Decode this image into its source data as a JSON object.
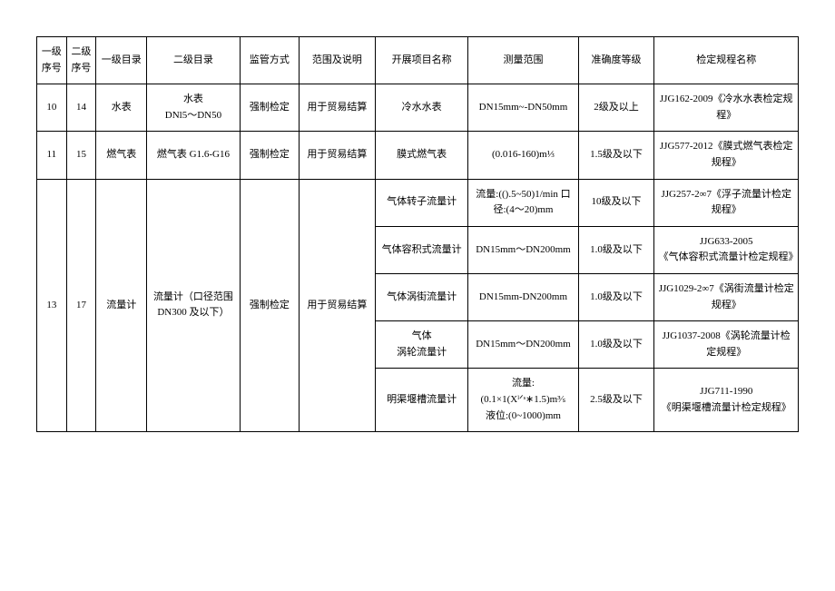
{
  "headers": {
    "col1": "一级序号",
    "col2": "二级序号",
    "col3": "一级目录",
    "col4": "二级目录",
    "col5": "监管方式",
    "col6": "范围及说明",
    "col7": "开展项目名称",
    "col8": "测量范围",
    "col9": "准确度等级",
    "col10": "检定规程名称"
  },
  "rows": {
    "r1": {
      "c1": "10",
      "c2": "14",
      "c3": "水表",
      "c4": "水表\nDNl5～DN50",
      "c5": "强制检定",
      "c6": "用于贸易结算",
      "c7": "冷水水表",
      "c8": "DN15mm~-DN50mm",
      "c9": "2级及以上",
      "c10": "JJG162-2009《冷水水表检定规程》"
    },
    "r2": {
      "c1": "11",
      "c2": "15",
      "c3": "燃气表",
      "c4": "燃气表 G1.6-G16",
      "c5": "强制检定",
      "c6": "用于贸易结算",
      "c7": "膜式燃气表",
      "c8": "(0.016-160)m⅓",
      "c9": "1.5级及以下",
      "c10": "JJG577-2012《膜式燃气表检定规程》"
    },
    "r3": {
      "c1": "13",
      "c2": "17",
      "c3": "流量计",
      "c4": "流量计（口径范围DN300 及以下）",
      "c5": "强制检定",
      "c6": "用于贸易结算",
      "sub1": {
        "c7": "气体转子流量计",
        "c8": "流量:(().5~50)1/min 口径:(4～20)mm",
        "c9": "10级及以下",
        "c10": "JJG257-2∞7《浮子流量计检定规程》"
      },
      "sub2": {
        "c7": "气体容积式流量计",
        "c8": "DN15mm～DN200mm",
        "c9": "1.0级及以下",
        "c10": "JJG633-2005\n《气体容积式流量计检定规程》"
      },
      "sub3": {
        "c7": "气体涡街流量计",
        "c8": "DN15mm-DN200mm",
        "c9": "1.0级及以下",
        "c10": "JJG1029-2∞7《涡街流量计检定规程》"
      },
      "sub4": {
        "c7": "气体\n涡轮流量计",
        "c8": "DN15mm～DN200mm",
        "c9": "1.0级及以下",
        "c10": "JJG1037-2008《涡轮流量计检定规程》"
      },
      "sub5": {
        "c7": "明渠堰槽流量计",
        "c8": "流量:\n(0.1×1(Xˡᐟˢ∗1.5)m³⁄ₛ\n液位:(0~1000)mm",
        "c9": "2.5级及以下",
        "c10": "JJG711-1990\n《明渠堰槽流量计检定规程》"
      }
    }
  }
}
